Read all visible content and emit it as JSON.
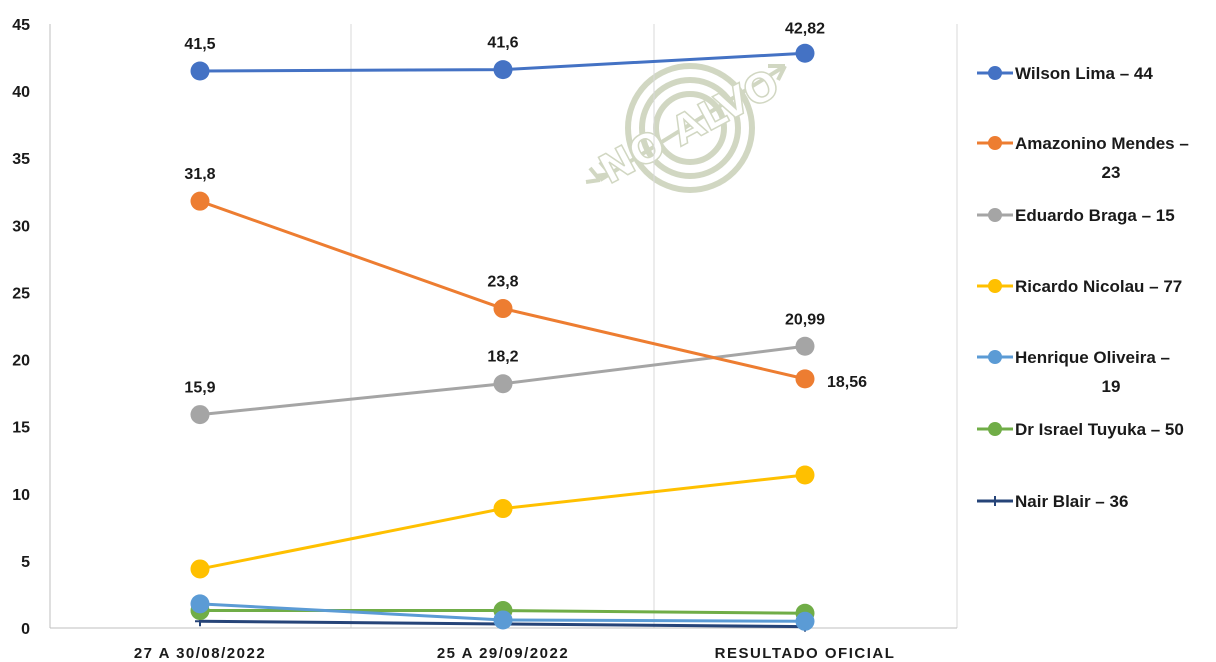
{
  "chart_data": {
    "type": "line",
    "categories": [
      "27 A 30/08/2022",
      "25 A 29/09/2022",
      "RESULTADO OFICIAL"
    ],
    "ylim": [
      0,
      45
    ],
    "yticks": [
      0,
      5,
      10,
      15,
      20,
      25,
      30,
      35,
      40,
      45
    ],
    "grid": "vertical",
    "legend_position": "right",
    "watermark": "NO ALVO",
    "series": [
      {
        "name": "Wilson Lima – 44",
        "legend_lines": [
          "Wilson Lima – 44"
        ],
        "color": "#4472C4",
        "marker": "circle",
        "values": [
          41.5,
          41.6,
          42.82
        ],
        "labels": [
          "41,5",
          "41,6",
          "42,82"
        ]
      },
      {
        "name": "Amazonino Mendes – 23",
        "legend_lines": [
          "Amazonino Mendes –",
          "23"
        ],
        "color": "#ED7D31",
        "marker": "circle",
        "values": [
          31.8,
          23.8,
          18.56
        ],
        "labels": [
          "31,8",
          "23,8",
          "18,56"
        ]
      },
      {
        "name": "Eduardo Braga – 15",
        "legend_lines": [
          "Eduardo Braga – 15"
        ],
        "color": "#A5A5A5",
        "marker": "circle",
        "values": [
          15.9,
          18.2,
          20.99
        ],
        "labels": [
          "15,9",
          "18,2",
          "20,99"
        ]
      },
      {
        "name": "Ricardo Nicolau – 77",
        "legend_lines": [
          "Ricardo Nicolau – 77"
        ],
        "color": "#FFC000",
        "marker": "circle",
        "values": [
          4.4,
          8.9,
          11.4
        ],
        "labels": []
      },
      {
        "name": "Henrique Oliveira – 19",
        "legend_lines": [
          "Henrique Oliveira –",
          "19"
        ],
        "color": "#5B9BD5",
        "marker": "circle",
        "values": [
          1.8,
          0.6,
          0.5
        ],
        "labels": []
      },
      {
        "name": "Dr Israel Tuyuka – 50",
        "legend_lines": [
          "Dr Israel Tuyuka – 50"
        ],
        "color": "#70AD47",
        "marker": "circle",
        "values": [
          1.3,
          1.3,
          1.1
        ],
        "labels": []
      },
      {
        "name": "Nair Blair – 36",
        "legend_lines": [
          "Nair Blair – 36"
        ],
        "color": "#264478",
        "marker": "plus",
        "values": [
          0.5,
          0.3,
          0.1
        ],
        "labels": []
      }
    ]
  }
}
